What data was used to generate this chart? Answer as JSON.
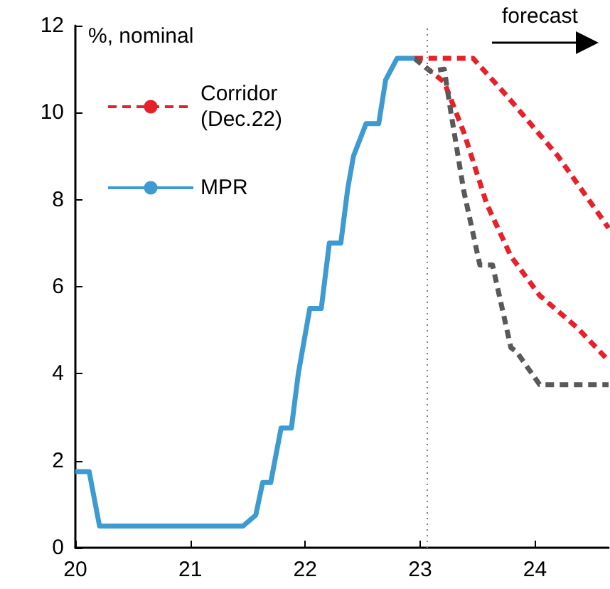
{
  "chart_data": {
    "type": "line",
    "ylabel": "%, nominal",
    "annotations": [
      "forecast"
    ],
    "xlim": [
      20,
      24.64
    ],
    "xticks": [
      20,
      21,
      22,
      23,
      24
    ],
    "ylim": [
      0,
      12
    ],
    "yticks": [
      0,
      2,
      4,
      6,
      8,
      10,
      12
    ],
    "grid": false,
    "legend": "top left",
    "marker": "none",
    "ref_lines": [
      {
        "axis": "x",
        "value": 23.06,
        "label": null,
        "color": "#808080",
        "line_style": "dotted"
      }
    ],
    "series": [
      {
        "name": "Corridor (Dec.22)",
        "color": "#e8202a",
        "line_style": "dashed",
        "x": [
          22.95,
          23.46,
          23.75,
          24.2,
          24.64
        ],
        "values": [
          11.25,
          11.25,
          10.4,
          9.0,
          7.35
        ]
      },
      {
        "color": "#e8202a",
        "line_style": "dashed",
        "x": [
          22.95,
          23.21,
          23.38,
          23.58,
          23.79,
          24.04,
          24.37,
          24.64
        ],
        "values": [
          11.25,
          10.7,
          9.55,
          7.9,
          6.7,
          5.8,
          5.05,
          4.3
        ]
      },
      {
        "color": "#595959",
        "line_style": "dashed",
        "x": [
          22.95,
          23.09,
          23.21,
          23.27,
          23.38,
          23.52,
          23.63,
          23.79,
          23.84,
          24.04,
          24.64
        ],
        "values": [
          11.25,
          10.95,
          11.0,
          9.97,
          8.2,
          6.5,
          6.5,
          4.6,
          4.5,
          3.75,
          3.75
        ]
      },
      {
        "name": "MPR",
        "color": "#3d9bd1",
        "line_style": "solid",
        "x": [
          20.0,
          20.12,
          20.21,
          21.46,
          21.57,
          21.63,
          21.7,
          21.79,
          21.88,
          21.94,
          22.04,
          22.14,
          22.21,
          22.31,
          22.37,
          22.42,
          22.53,
          22.64,
          22.7,
          22.8,
          22.95
        ],
        "values": [
          1.75,
          1.75,
          0.5,
          0.5,
          0.75,
          1.5,
          1.5,
          2.75,
          2.75,
          4,
          5.5,
          5.5,
          7,
          7,
          8.25,
          9,
          9.75,
          9.75,
          10.75,
          11.25,
          11.25
        ]
      }
    ]
  }
}
